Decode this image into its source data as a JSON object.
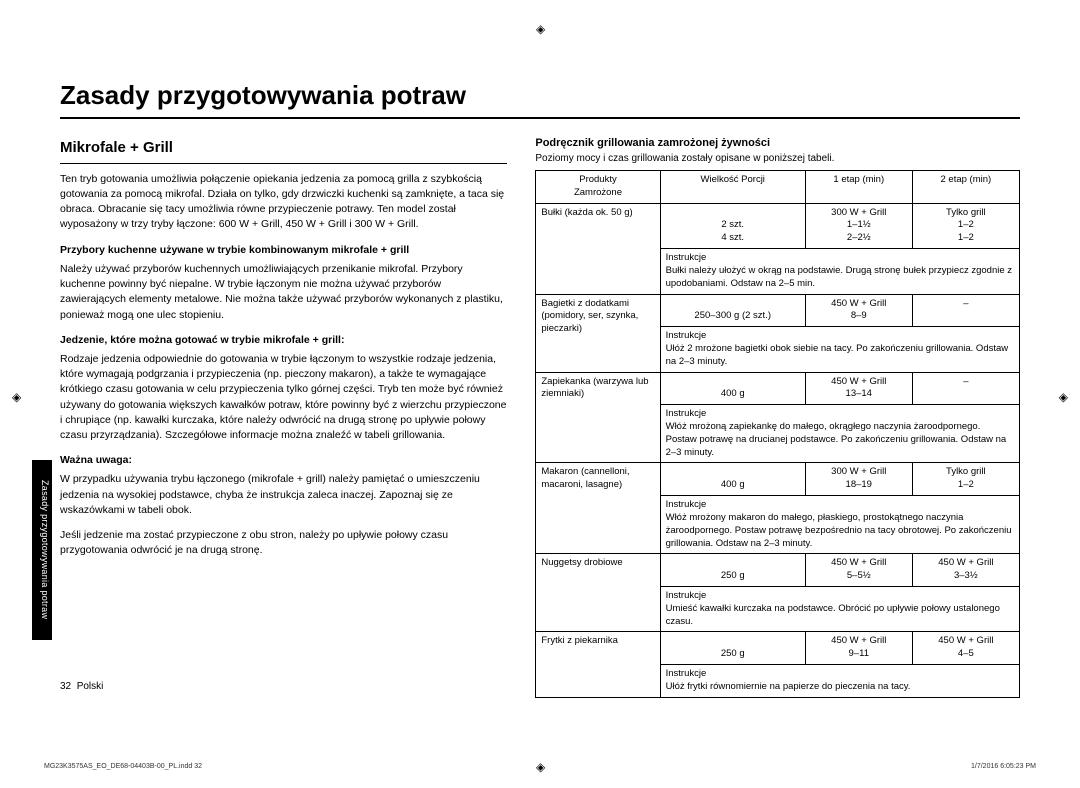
{
  "title": "Zasady przygotowywania potraw",
  "side_tab": "Zasady przygotowywania potraw",
  "left": {
    "section": "Mikrofale + Grill",
    "intro": "Ten tryb gotowania umożliwia połączenie opiekania jedzenia za pomocą grilla z szybkością gotowania za pomocą mikrofal. Działa on tylko, gdy drzwiczki kuchenki są zamknięte, a taca się obraca. Obracanie się tacy umożliwia równe przypieczenie potrawy. Ten model został wyposażony w trzy tryby łączone: 600 W + Grill, 450 W + Grill i 300 W + Grill.",
    "h_utensils": "Przybory kuchenne używane w trybie kombinowanym mikrofale + grill",
    "p_utensils": "Należy używać przyborów kuchennych umożliwiających przenikanie mikrofal. Przybory kuchenne powinny być niepalne. W trybie łączonym nie można używać przyborów zawierających elementy metalowe. Nie można także używać przyborów wykonanych z plastiku, ponieważ mogą one ulec stopieniu.",
    "h_food": "Jedzenie, które można gotować w trybie mikrofale + grill:",
    "p_food": "Rodzaje jedzenia odpowiednie do gotowania w trybie łączonym to wszystkie rodzaje jedzenia, które wymagają podgrzania i przypieczenia (np. pieczony makaron), a także te wymagające krótkiego czasu gotowania w celu przypieczenia tylko górnej części. Tryb ten może być również używany do gotowania większych kawałków potraw, które powinny być z wierzchu przypieczone i chrupiące (np. kawałki kurczaka, które należy odwrócić na drugą stronę po upływie połowy czasu przyrządzania). Szczegółowe informacje można znaleźć w tabeli grillowania.",
    "h_note": "Ważna uwaga:",
    "p_note1": "W przypadku używania trybu łączonego (mikrofale + grill) należy pamiętać o umieszczeniu jedzenia na wysokiej podstawce, chyba że instrukcja zaleca inaczej. Zapoznaj się ze wskazówkami w tabeli obok.",
    "p_note2": "Jeśli jedzenie ma zostać przypieczone z obu stron, należy po upływie połowy czasu przygotowania odwrócić je na drugą stronę."
  },
  "right": {
    "heading": "Podręcznik grillowania zamrożonej żywności",
    "intro": "Poziomy mocy i czas grillowania zostały opisane w poniższej tabeli.",
    "thead": {
      "c1a": "Produkty",
      "c1b": "Zamrożone",
      "c2": "Wielkość Porcji",
      "c3": "1 etap (min)",
      "c4": "2 etap (min)"
    },
    "instr_label": "Instrukcje",
    "rows": [
      {
        "prod": "Bułki (każda ok. 50 g)",
        "portion_a": "2 szt.",
        "portion_b": "4 szt.",
        "s1_head": "300 W + Grill",
        "s1_a": "1–1½",
        "s1_b": "2–2½",
        "s2_head": "Tylko grill",
        "s2_a": "1–2",
        "s2_b": "1–2",
        "instr": "Bułki należy ułożyć w okrąg na podstawie. Drugą stronę bułek przypiecz zgodnie z upodobaniami. Odstaw na 2–5 min."
      },
      {
        "prod": "Bagietki z dodatkami (pomidory, ser, szynka, pieczarki)",
        "portion_a": "250–300 g (2 szt.)",
        "s1_head": "450 W + Grill",
        "s1_a": "8–9",
        "s2_head": "–",
        "instr": "Ułóż 2 mrożone bagietki obok siebie na tacy. Po zakończeniu grillowania. Odstaw na 2–3 minuty."
      },
      {
        "prod": "Zapiekanka (warzywa lub ziemniaki)",
        "portion_a": "400 g",
        "s1_head": "450 W + Grill",
        "s1_a": "13–14",
        "s2_head": "–",
        "instr": "Włóż mrożoną zapiekankę do małego, okrągłego naczynia żaroodpornego. Postaw potrawę na drucianej podstawce. Po zakończeniu grillowania. Odstaw na 2–3 minuty."
      },
      {
        "prod": "Makaron (cannelloni, macaroni, lasagne)",
        "portion_a": "400 g",
        "s1_head": "300 W + Grill",
        "s1_a": "18–19",
        "s2_head": "Tylko grill",
        "s2_a": "1–2",
        "instr": "Włóż mrożony makaron do małego, płaskiego, prostokątnego naczynia żaroodpornego. Postaw potrawę bezpośrednio na tacy obrotowej. Po zakończeniu grillowania. Odstaw na 2–3 minuty."
      },
      {
        "prod": "Nuggetsy drobiowe",
        "portion_a": "250 g",
        "s1_head": "450 W + Grill",
        "s1_a": "5–5½",
        "s2_head": "450 W + Grill",
        "s2_a": "3–3½",
        "instr": "Umieść kawałki kurczaka na podstawce. Obrócić po upływie połowy ustalonego czasu."
      },
      {
        "prod": "Frytki z piekarnika",
        "portion_a": "250 g",
        "s1_head": "450 W + Grill",
        "s1_a": "9–11",
        "s2_head": "450 W + Grill",
        "s2_a": "4–5",
        "instr": "Ułóż frytki równomiernie na papierze do pieczenia na tacy."
      }
    ]
  },
  "footer": {
    "page": "32",
    "lang": "Polski"
  },
  "print": {
    "left": "MG23K3575AS_EO_DE68-04403B-00_PL.indd   32",
    "right": "1/7/2016   6:05:23 PM"
  }
}
